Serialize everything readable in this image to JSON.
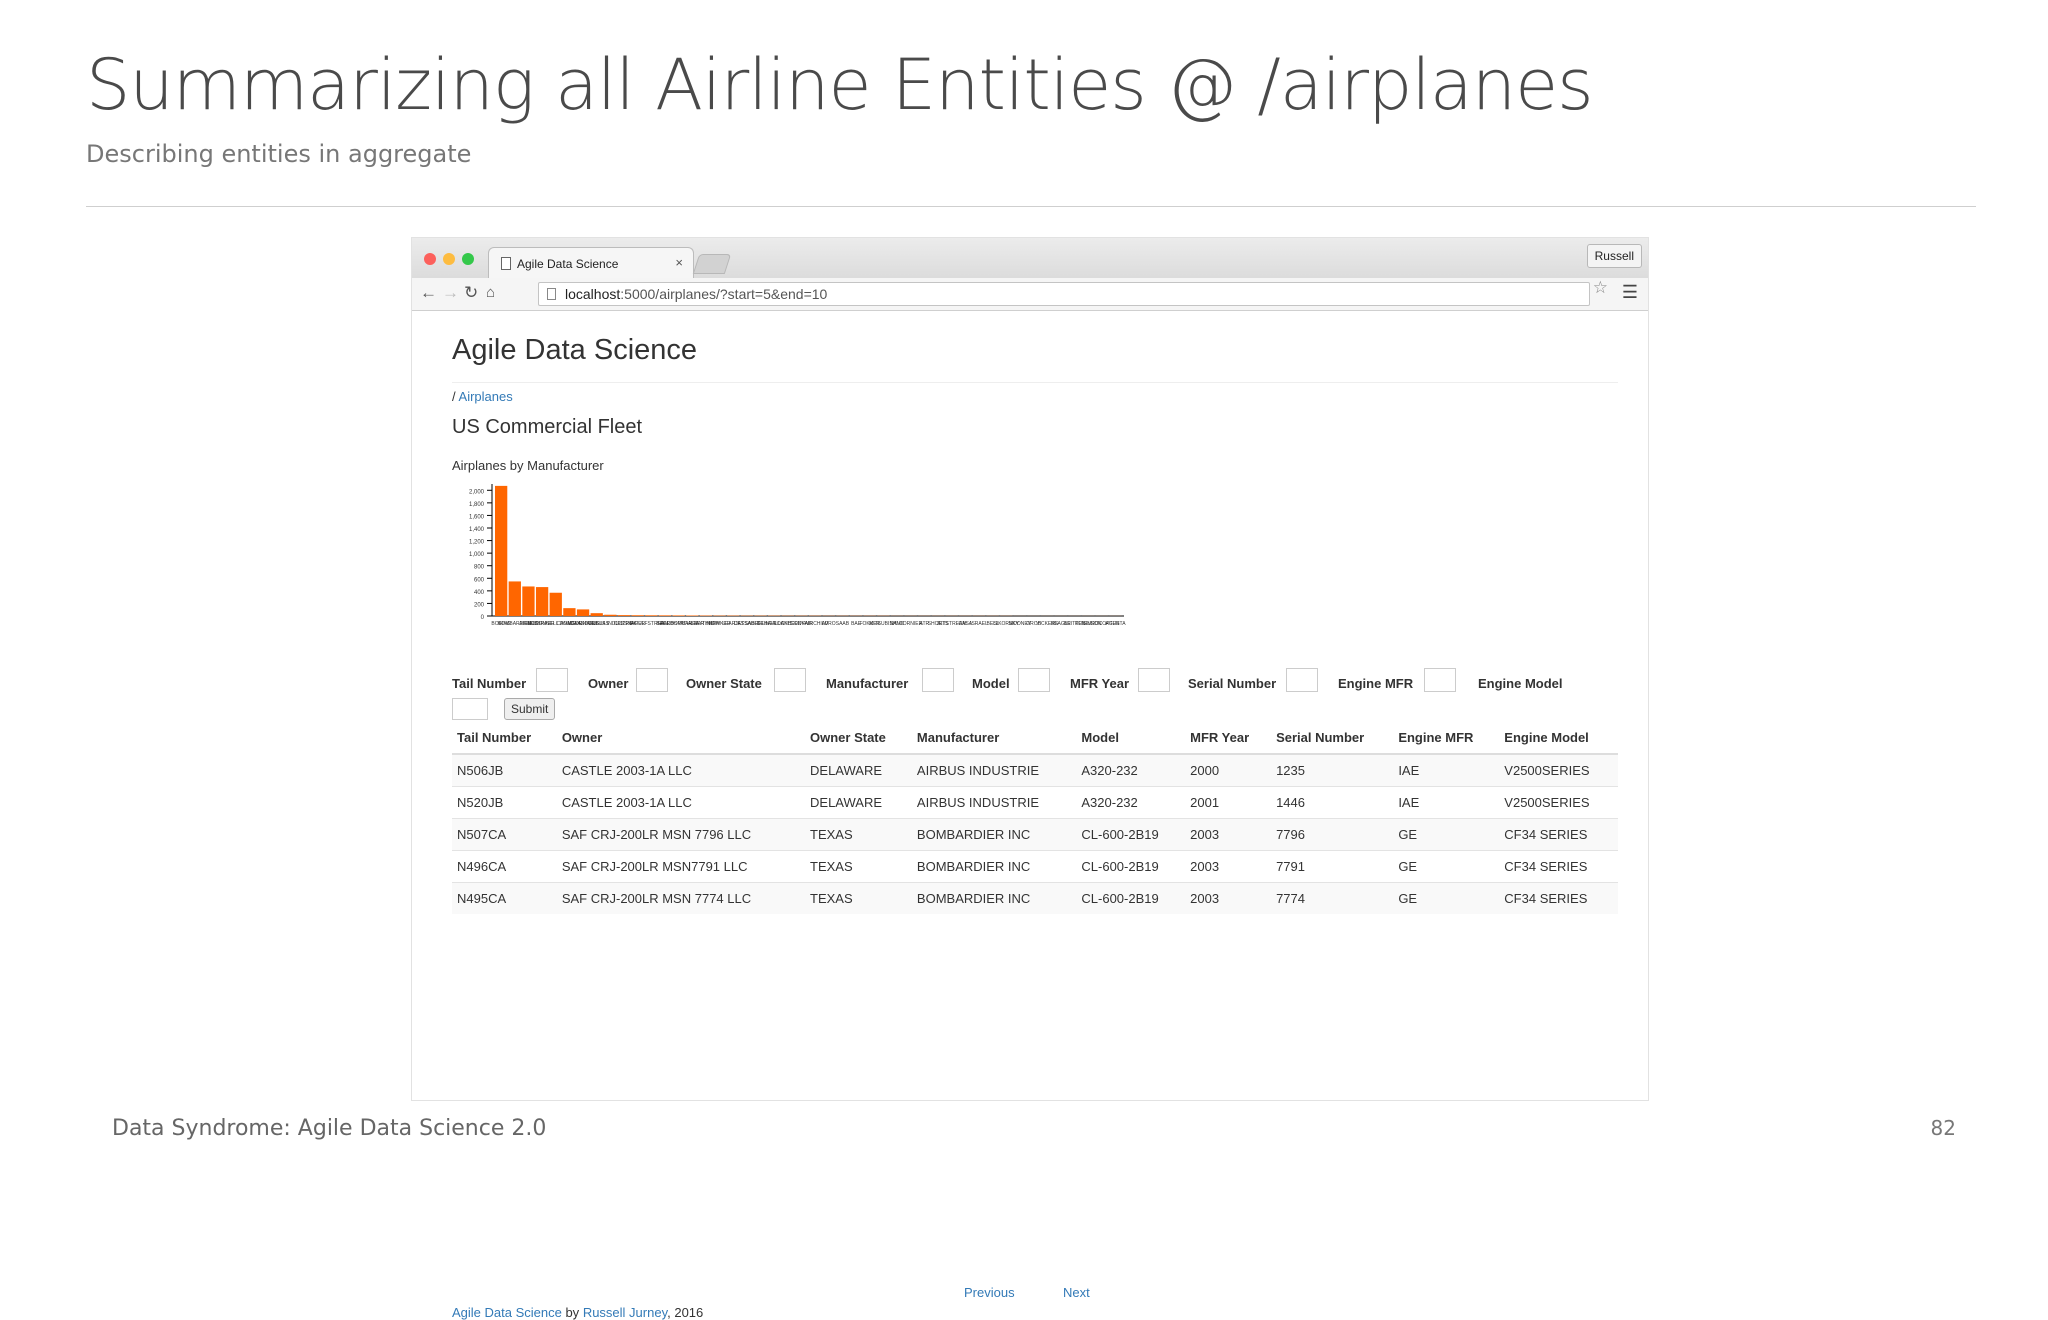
{
  "slide": {
    "title": "Summarizing all Airline Entities @ /airplanes",
    "subtitle": "Describing entities in aggregate",
    "footer": "Data Syndrome: Agile Data Science 2.0",
    "page_number": "82"
  },
  "browser": {
    "tab_title": "Agile Data Science",
    "tab_close": "×",
    "profile": "Russell",
    "url_host": "localhost",
    "url_rest": ":5000/airplanes/?start=5&end=10"
  },
  "page": {
    "site_title": "Agile Data Science",
    "breadcrumb_sep": "/",
    "breadcrumb_link": "Airplanes",
    "section_title": "US Commercial Fleet",
    "chart_title": "Airplanes by Manufacturer"
  },
  "chart_data": {
    "type": "bar",
    "title": "Airplanes by Manufacturer",
    "xlabel": "",
    "ylabel": "",
    "ylim": [
      0,
      2100
    ],
    "yticks": [
      0,
      200,
      400,
      600,
      800,
      1000,
      1200,
      1400,
      1600,
      1800,
      2000
    ],
    "ytick_labels": [
      "0",
      "200",
      "400",
      "600",
      "800",
      "1,000",
      "1,200",
      "1,400",
      "1,600",
      "1,800",
      "2,000"
    ],
    "categories": [
      "BOEING",
      "BOMBARDIER",
      "AIRBUS",
      "EMBRAER",
      "MCDONNELL DOUGLAS",
      "CANADAIR",
      "MCDONNELL",
      "DOUGLAS",
      "AIRBUS INDUSTRIE",
      "CESSNA",
      "PIPER",
      "GULFSTREAM",
      "BEECH",
      "AEROSPATIALE",
      "BOMBARDIER INC",
      "RAYTHEON",
      "HAWKER",
      "LEARJET",
      "DASSAULT",
      "SABRELINER",
      "DEHAVILLAND",
      "LOCKHEED",
      "CONVAIR",
      "FAIRCHILD",
      "AVRO",
      "SAAB",
      "BAE",
      "FOKKER",
      "MITSUBISHI",
      "NAMC",
      "DORNIER",
      "ATR",
      "SHORTS",
      "JETSTREAM",
      "CASA",
      "ISRAEL",
      "BELL",
      "SIKORSKY",
      "MOONEY",
      "GROB",
      "VICKERS",
      "BEAGLE",
      "BRITTEN",
      "ROBINSON",
      "EUROCOPTER",
      "AGUSTA"
    ],
    "values": [
      2070,
      550,
      470,
      460,
      370,
      125,
      105,
      45,
      20,
      14,
      12,
      11,
      10,
      9,
      8,
      7,
      6,
      6,
      5,
      5,
      5,
      4,
      4,
      4,
      3,
      3,
      3,
      3,
      3,
      2,
      2,
      2,
      2,
      2,
      2,
      2,
      2,
      2,
      1,
      1,
      1,
      1,
      1,
      1,
      1,
      1
    ],
    "color": "#ff6600"
  },
  "filters": [
    {
      "label": "Tail Number",
      "input_left": 84
    },
    {
      "label": "Owner",
      "input_left": 184
    },
    {
      "label": "Owner State",
      "input_left": 322
    },
    {
      "label": "Manufacturer",
      "input_left": 470
    },
    {
      "label": "Model",
      "input_left": 566
    },
    {
      "label": "MFR Year",
      "input_left": 686
    },
    {
      "label": "Serial Number",
      "input_left": 834
    },
    {
      "label": "Engine MFR",
      "input_left": 972
    },
    {
      "label": "Engine Model",
      "input_left": null
    }
  ],
  "submit_label": "Submit",
  "table": {
    "columns": [
      "Tail Number",
      "Owner",
      "Owner State",
      "Manufacturer",
      "Model",
      "MFR Year",
      "Serial Number",
      "Engine MFR",
      "Engine Model"
    ],
    "rows": [
      [
        "N506JB",
        "CASTLE 2003-1A LLC",
        "DELAWARE",
        "AIRBUS INDUSTRIE",
        "A320-232",
        "2000",
        "1235",
        "IAE",
        "V2500SERIES"
      ],
      [
        "N520JB",
        "CASTLE 2003-1A LLC",
        "DELAWARE",
        "AIRBUS INDUSTRIE",
        "A320-232",
        "2001",
        "1446",
        "IAE",
        "V2500SERIES"
      ],
      [
        "N507CA",
        "SAF CRJ-200LR MSN 7796 LLC",
        "TEXAS",
        "BOMBARDIER INC",
        "CL-600-2B19",
        "2003",
        "7796",
        "GE",
        "CF34 SERIES"
      ],
      [
        "N496CA",
        "SAF CRJ-200LR MSN7791 LLC",
        "TEXAS",
        "BOMBARDIER INC",
        "CL-600-2B19",
        "2003",
        "7791",
        "GE",
        "CF34 SERIES"
      ],
      [
        "N495CA",
        "SAF CRJ-200LR MSN 7774 LLC",
        "TEXAS",
        "BOMBARDIER INC",
        "CL-600-2B19",
        "2003",
        "7774",
        "GE",
        "CF34 SERIES"
      ]
    ]
  },
  "pager": {
    "previous": "Previous",
    "next": "Next"
  },
  "credit": {
    "site_link": "Agile Data Science",
    "by": " by ",
    "author_link": "Russell Jurney",
    "year": ", 2016"
  }
}
